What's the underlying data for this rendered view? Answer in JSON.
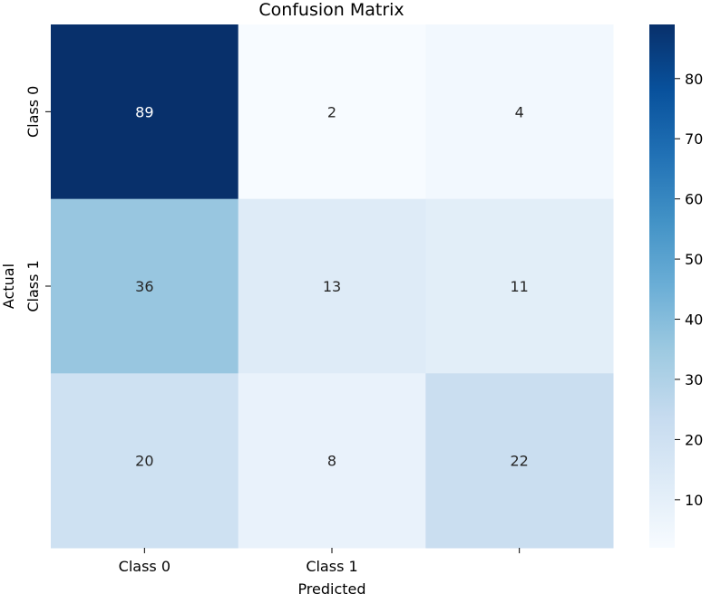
{
  "chart_data": {
    "type": "heatmap",
    "title": "Confusion Matrix",
    "xlabel": "Predicted",
    "ylabel": "Actual",
    "x_tick_labels": [
      "Class 0",
      "Class 1",
      ""
    ],
    "y_tick_labels": [
      "Class 0",
      "Class 1",
      ""
    ],
    "matrix": [
      [
        89,
        2,
        4
      ],
      [
        36,
        13,
        11
      ],
      [
        20,
        8,
        22
      ]
    ],
    "colormap": "Blues",
    "colorbar": {
      "range": [
        2,
        89
      ],
      "ticks": [
        10,
        20,
        30,
        40,
        50,
        60,
        70,
        80
      ]
    }
  }
}
